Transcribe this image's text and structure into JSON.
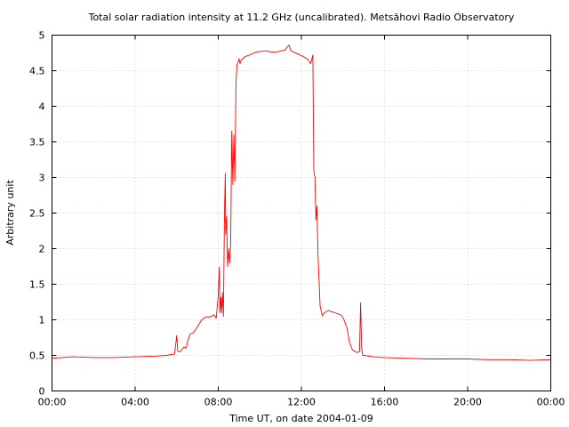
{
  "chart_data": {
    "type": "line",
    "title": "Total solar radiation intensity at 11.2 GHz (uncalibrated). Metsähovi Radio Observatory",
    "xlabel": "Time UT, on date 2004-01-09",
    "ylabel": "Arbitrary unit",
    "xlim": [
      0,
      24
    ],
    "ylim": [
      0,
      5
    ],
    "grid": true,
    "x_ticks": [
      {
        "value": 0,
        "label": "00:00"
      },
      {
        "value": 4,
        "label": "04:00"
      },
      {
        "value": 8,
        "label": "08:00"
      },
      {
        "value": 12,
        "label": "12:00"
      },
      {
        "value": 16,
        "label": "16:00"
      },
      {
        "value": 20,
        "label": "20:00"
      },
      {
        "value": 24,
        "label": "00:00"
      }
    ],
    "y_ticks": [
      {
        "value": 0,
        "label": "0"
      },
      {
        "value": 0.5,
        "label": "0.5"
      },
      {
        "value": 1,
        "label": "1"
      },
      {
        "value": 1.5,
        "label": "1.5"
      },
      {
        "value": 2,
        "label": "2"
      },
      {
        "value": 2.5,
        "label": "2.5"
      },
      {
        "value": 3,
        "label": "3"
      },
      {
        "value": 3.5,
        "label": "3.5"
      },
      {
        "value": 4,
        "label": "4"
      },
      {
        "value": 4.5,
        "label": "4.5"
      },
      {
        "value": 5,
        "label": "5"
      }
    ],
    "series": [
      {
        "color": "#ff0000",
        "x": [
          0,
          0.5,
          1,
          2,
          3,
          4,
          5,
          5.5,
          5.9,
          6.0,
          6.05,
          6.1,
          6.2,
          6.35,
          6.45,
          6.55,
          6.65,
          6.8,
          7.0,
          7.2,
          7.4,
          7.6,
          7.8,
          7.9,
          8.0,
          8.05,
          8.08,
          8.12,
          8.16,
          8.2,
          8.25,
          8.3,
          8.34,
          8.36,
          8.4,
          8.45,
          8.5,
          8.55,
          8.6,
          8.65,
          8.7,
          8.75,
          8.8,
          8.85,
          8.9,
          8.95,
          9.0,
          9.05,
          9.1,
          9.3,
          9.5,
          9.8,
          10.0,
          10.3,
          10.6,
          10.9,
          11.2,
          11.4,
          11.5,
          11.8,
          12.1,
          12.3,
          12.45,
          12.55,
          12.6,
          12.65,
          12.7,
          12.75,
          12.8,
          12.85,
          12.9,
          13.0,
          13.1,
          13.3,
          13.6,
          13.9,
          14.0,
          14.1,
          14.2,
          14.3,
          14.45,
          14.6,
          14.7,
          14.8,
          14.85,
          14.9,
          14.95,
          15.0,
          15.5,
          16,
          17,
          18,
          19,
          20,
          21,
          22,
          23,
          24
        ],
        "y": [
          0.46,
          0.47,
          0.48,
          0.47,
          0.47,
          0.48,
          0.49,
          0.5,
          0.52,
          0.78,
          0.56,
          0.55,
          0.56,
          0.62,
          0.6,
          0.72,
          0.8,
          0.82,
          0.9,
          1.0,
          1.04,
          1.04,
          1.07,
          1.02,
          1.35,
          1.74,
          1.1,
          1.32,
          1.1,
          1.38,
          1.05,
          2.5,
          3.06,
          2.2,
          2.45,
          1.75,
          2.0,
          1.8,
          2.1,
          3.65,
          2.9,
          3.6,
          2.95,
          4.3,
          4.58,
          4.62,
          4.67,
          4.6,
          4.65,
          4.7,
          4.72,
          4.76,
          4.77,
          4.78,
          4.76,
          4.77,
          4.79,
          4.86,
          4.78,
          4.74,
          4.7,
          4.66,
          4.6,
          4.72,
          3.1,
          3.0,
          2.4,
          2.6,
          1.9,
          1.55,
          1.2,
          1.06,
          1.1,
          1.13,
          1.1,
          1.07,
          1.03,
          0.96,
          0.88,
          0.7,
          0.58,
          0.55,
          0.54,
          0.56,
          1.24,
          0.6,
          0.5,
          0.5,
          0.48,
          0.47,
          0.46,
          0.45,
          0.45,
          0.45,
          0.44,
          0.44,
          0.43,
          0.44
        ]
      }
    ]
  }
}
